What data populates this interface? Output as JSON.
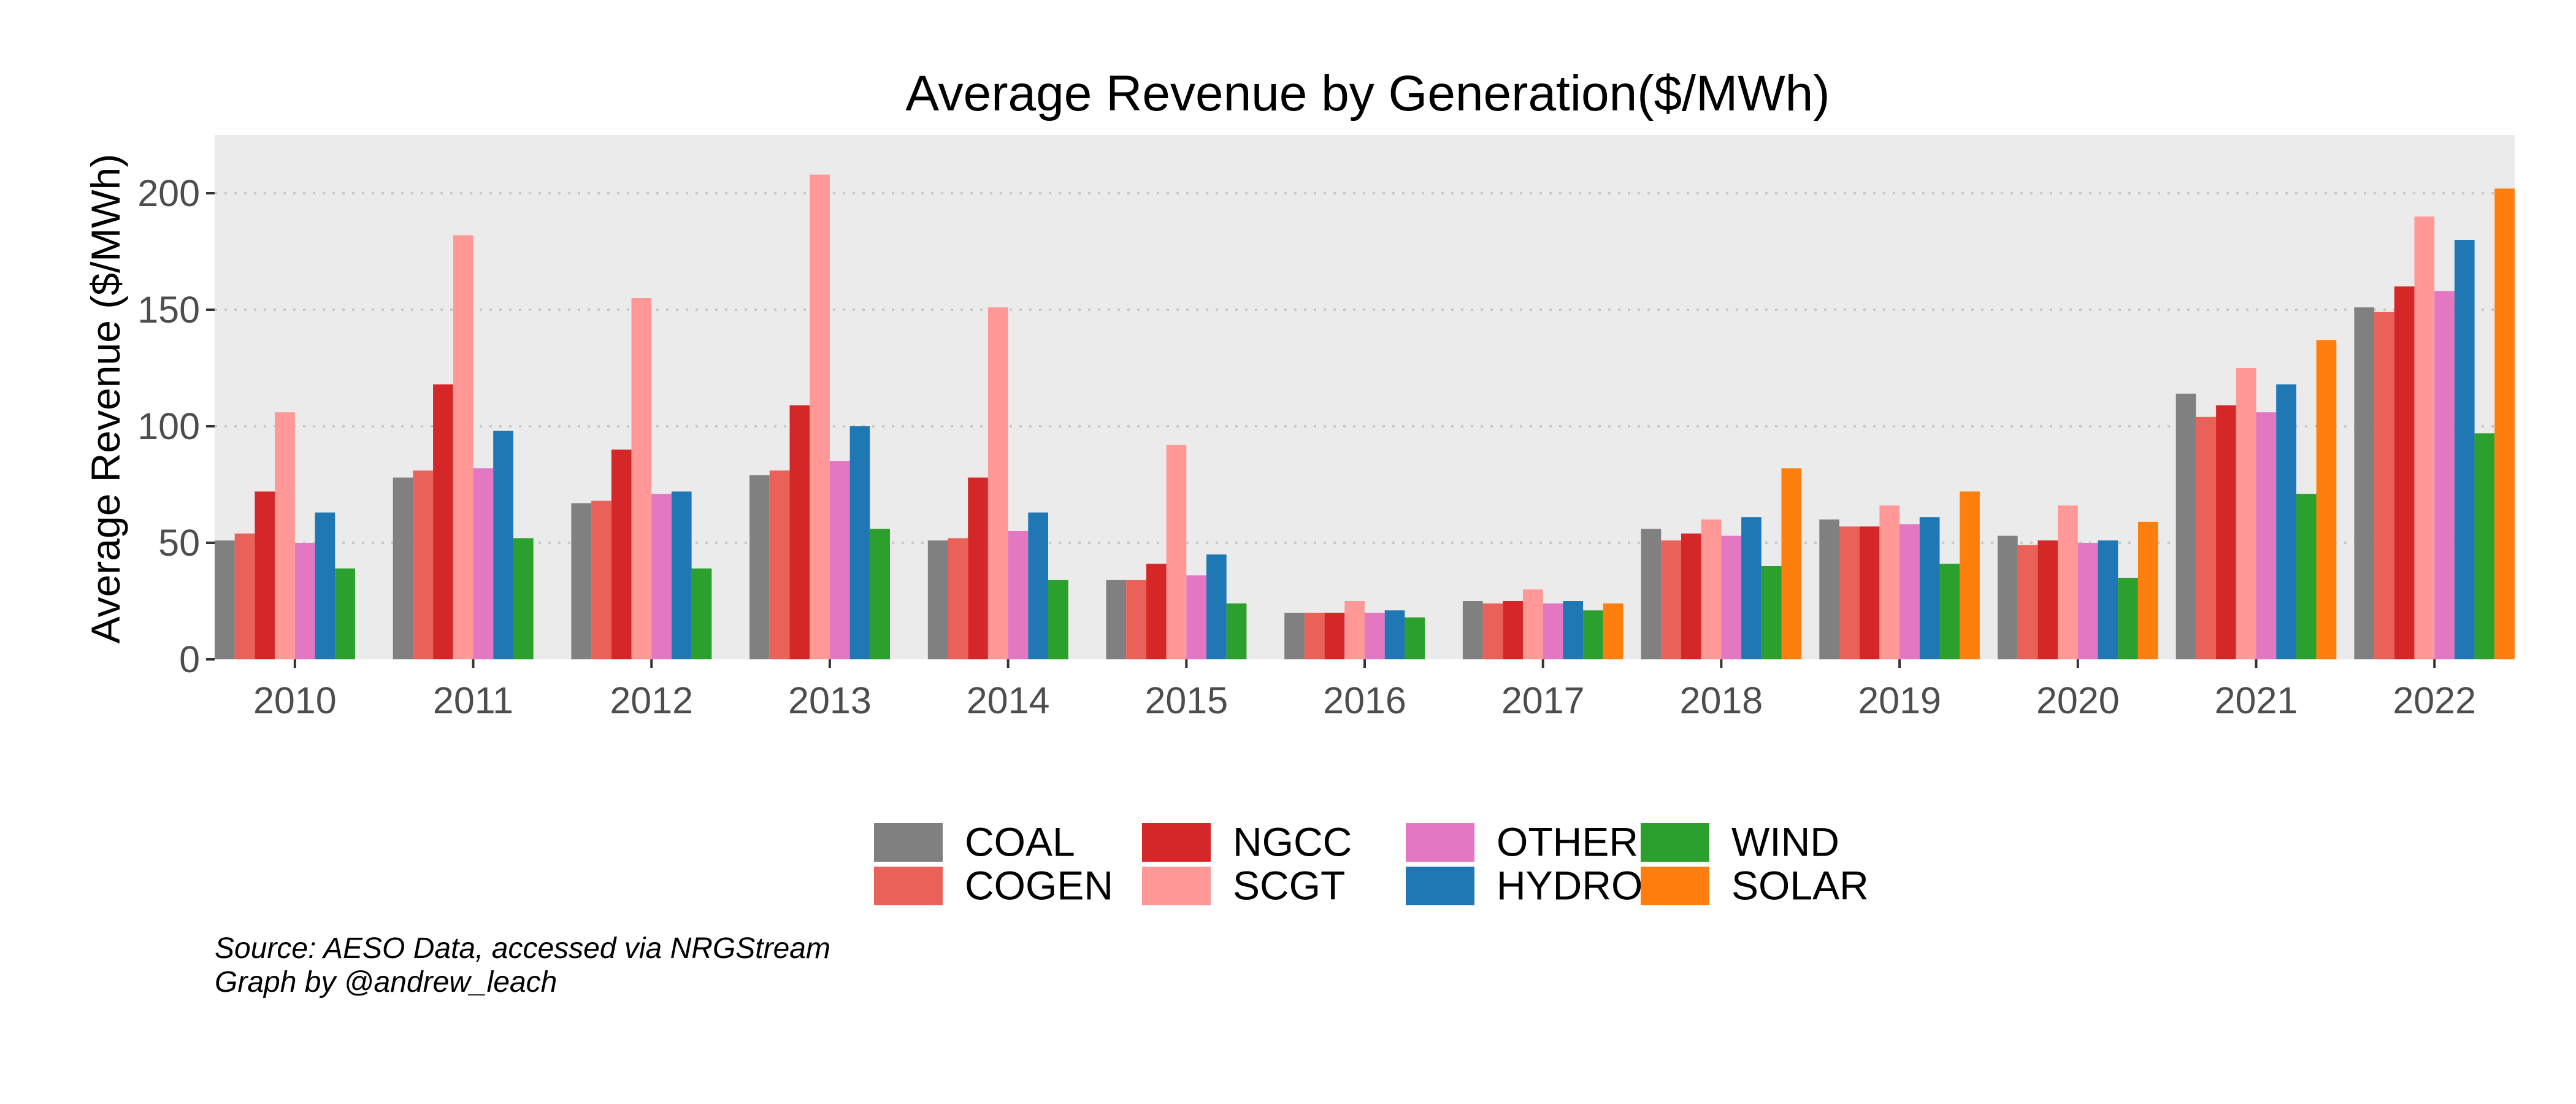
{
  "chart_data": {
    "type": "bar",
    "title": "Average Revenue by Generation($/MWh)",
    "xlabel": "",
    "ylabel": "Average Revenue ($/MWh)",
    "ylim": [
      0,
      225
    ],
    "yticks": [
      "0",
      "50",
      "100",
      "150",
      "200"
    ],
    "grid": "horizontal dotted",
    "legend_position": "bottom",
    "categories": [
      "2010",
      "2011",
      "2012",
      "2013",
      "2014",
      "2015",
      "2016",
      "2017",
      "2018",
      "2019",
      "2020",
      "2021",
      "2022"
    ],
    "series": [
      {
        "name": "COAL",
        "color": "#808080",
        "values": [
          51,
          78,
          67,
          79,
          51,
          34,
          20,
          25,
          56,
          60,
          53,
          114,
          151
        ]
      },
      {
        "name": "COGEN",
        "color": "#ea615a",
        "values": [
          54,
          81,
          68,
          81,
          52,
          34,
          20,
          24,
          51,
          57,
          49,
          104,
          149
        ]
      },
      {
        "name": "NGCC",
        "color": "#d62728",
        "values": [
          72,
          118,
          90,
          109,
          78,
          41,
          20,
          25,
          54,
          57,
          51,
          109,
          160
        ]
      },
      {
        "name": "SCGT",
        "color": "#ff9896",
        "values": [
          106,
          182,
          155,
          208,
          151,
          92,
          25,
          30,
          60,
          66,
          66,
          125,
          190
        ]
      },
      {
        "name": "OTHER",
        "color": "#e377c2",
        "values": [
          50,
          82,
          71,
          85,
          55,
          36,
          20,
          24,
          53,
          58,
          50,
          106,
          158
        ]
      },
      {
        "name": "HYDRO",
        "color": "#1f77b4",
        "values": [
          63,
          98,
          72,
          100,
          63,
          45,
          21,
          25,
          61,
          61,
          51,
          118,
          180
        ]
      },
      {
        "name": "WIND",
        "color": "#2ca02c",
        "values": [
          39,
          52,
          39,
          56,
          34,
          24,
          18,
          21,
          40,
          41,
          35,
          71,
          97
        ]
      },
      {
        "name": "SOLAR",
        "color": "#ff7f0e",
        "values": [
          null,
          null,
          null,
          null,
          null,
          null,
          null,
          24,
          82,
          72,
          59,
          137,
          202
        ]
      }
    ],
    "legend_order": [
      "COAL",
      "COGEN",
      "NGCC",
      "SCGT",
      "OTHER",
      "HYDRO",
      "WIND",
      "SOLAR"
    ]
  },
  "caption": {
    "line1": "Source: AESO Data, accessed via NRGStream",
    "line2": "Graph by @andrew_leach"
  }
}
